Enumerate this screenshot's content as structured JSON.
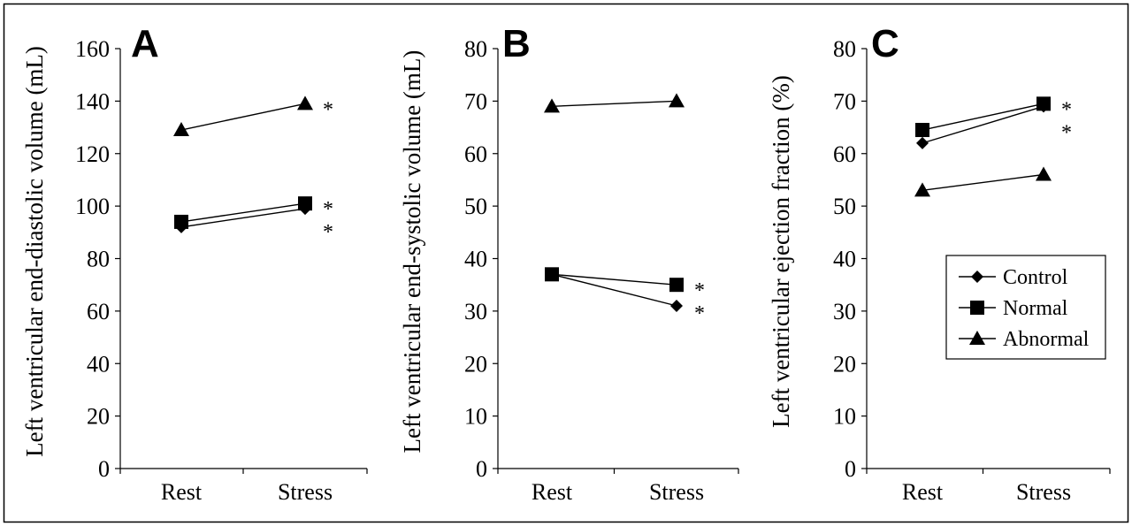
{
  "chart_data": [
    {
      "panel": "A",
      "type": "line",
      "ylabel": "Left ventricular end-diastolic volume (mL)",
      "xlabel": "",
      "categories": [
        "Rest",
        "Stress"
      ],
      "ylim": [
        0,
        160
      ],
      "yticks": [
        "0",
        "20",
        "40",
        "60",
        "80",
        "100",
        "120",
        "140",
        "160"
      ],
      "series": [
        {
          "name": "Control",
          "marker": "diamond",
          "values": [
            92,
            99
          ],
          "significance": "*"
        },
        {
          "name": "Normal",
          "marker": "square",
          "values": [
            94,
            101
          ],
          "significance": "*"
        },
        {
          "name": "Abnormal",
          "marker": "triangle",
          "values": [
            129,
            139
          ],
          "significance": "*"
        }
      ]
    },
    {
      "panel": "B",
      "type": "line",
      "ylabel": "Left ventricular end-systolic volume (mL)",
      "xlabel": "",
      "categories": [
        "Rest",
        "Stress"
      ],
      "ylim": [
        0,
        80
      ],
      "yticks": [
        "0",
        "10",
        "20",
        "30",
        "40",
        "50",
        "60",
        "70",
        "80"
      ],
      "series": [
        {
          "name": "Control",
          "marker": "diamond",
          "values": [
            37,
            31
          ],
          "significance": "*"
        },
        {
          "name": "Normal",
          "marker": "square",
          "values": [
            37,
            35
          ],
          "significance": "*"
        },
        {
          "name": "Abnormal",
          "marker": "triangle",
          "values": [
            69,
            70
          ],
          "significance": ""
        }
      ]
    },
    {
      "panel": "C",
      "type": "line",
      "ylabel": "Left ventricular ejection fraction (%)",
      "xlabel": "",
      "categories": [
        "Rest",
        "Stress"
      ],
      "ylim": [
        0,
        80
      ],
      "yticks": [
        "0",
        "10",
        "20",
        "30",
        "40",
        "50",
        "60",
        "70",
        "80"
      ],
      "series": [
        {
          "name": "Control",
          "marker": "diamond",
          "values": [
            62,
            69
          ],
          "significance": "*"
        },
        {
          "name": "Normal",
          "marker": "square",
          "values": [
            64.5,
            69.5
          ],
          "significance": "*"
        },
        {
          "name": "Abnormal",
          "marker": "triangle",
          "values": [
            53,
            56
          ],
          "significance": ""
        }
      ],
      "legend": {
        "placement": "right",
        "entries": [
          {
            "label": "Control",
            "marker": "diamond"
          },
          {
            "label": "Normal",
            "marker": "square"
          },
          {
            "label": "Abnormal",
            "marker": "triangle"
          }
        ]
      }
    }
  ],
  "colors": {
    "ink": "#000000",
    "background": "#ffffff",
    "frame": "#000000"
  }
}
